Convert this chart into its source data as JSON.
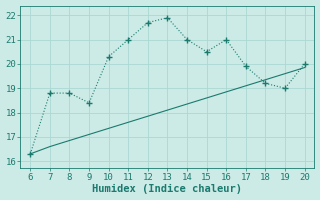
{
  "line1_x": [
    6,
    7,
    8,
    9,
    10,
    11,
    12,
    13,
    14,
    15,
    16,
    17,
    18,
    19,
    20
  ],
  "line1_y": [
    16.3,
    18.8,
    18.8,
    18.4,
    20.3,
    21.0,
    21.7,
    21.9,
    21.0,
    20.5,
    21.0,
    19.9,
    19.2,
    19.0,
    20.0
  ],
  "line2_x": [
    6,
    7,
    8,
    9,
    10,
    11,
    12,
    13,
    14,
    15,
    16,
    17,
    18,
    19,
    20
  ],
  "line2_y": [
    16.3,
    16.6,
    16.85,
    17.1,
    17.35,
    17.6,
    17.85,
    18.1,
    18.35,
    18.6,
    18.85,
    19.1,
    19.35,
    19.6,
    19.85
  ],
  "color": "#1a7a6e",
  "bg_color": "#cceae6",
  "grid_color": "#aad8d2",
  "xlabel": "Humidex (Indice chaleur)",
  "xlim": [
    5.5,
    20.5
  ],
  "ylim": [
    15.7,
    22.4
  ],
  "xticks": [
    6,
    7,
    8,
    9,
    10,
    11,
    12,
    13,
    14,
    15,
    16,
    17,
    18,
    19,
    20
  ],
  "yticks": [
    16,
    17,
    18,
    19,
    20,
    21,
    22
  ],
  "tick_fontsize": 6.5,
  "xlabel_fontsize": 7.5
}
